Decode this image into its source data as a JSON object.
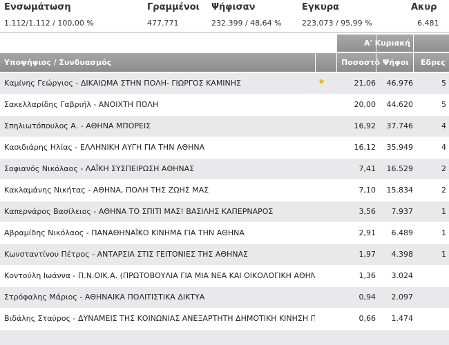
{
  "summary": {
    "columns": [
      {
        "label": "Ενσωμάτωση",
        "value": "1.112/1.112 / 100,00 %"
      },
      {
        "label": "Γραμμένοι",
        "value": "477.771"
      },
      {
        "label": "Ψήφισαν",
        "value": "232.399 / 48,64 %"
      },
      {
        "label": "Εγκυρα",
        "value": "223.073 / 95,99 %"
      },
      {
        "label": "Ακυρ",
        "value": "6.481"
      }
    ]
  },
  "table": {
    "round_label": "Α' Κυριακή",
    "headers": {
      "candidate": "Υποψήφιος / Συνδυασμός",
      "percent": "Ποσοστό",
      "votes": "Ψήφοι",
      "seats": "Εδρες"
    },
    "rows": [
      {
        "name": "Καμίνης Γεώργιος - ΔΙΚΑΙΩΜΑ ΣΤΗΝ ΠΟΛΗ- ΓΙΩΡΓΟΣ ΚΑΜΙΝΗΣ",
        "star": "★",
        "percent": "21,06",
        "votes": "46.976",
        "seats": "5"
      },
      {
        "name": "Σακελλαρίδης Γαβριήλ - ΑΝΟΙΧΤΗ ΠΟΛΗ",
        "star": "",
        "percent": "20,00",
        "votes": "44.620",
        "seats": "5"
      },
      {
        "name": "Σπηλιωτόπουλος Α. - ΑΘΗΝΑ ΜΠΟΡΕΙΣ",
        "star": "",
        "percent": "16,92",
        "votes": "37.746",
        "seats": "4"
      },
      {
        "name": "Κασιδιάρης Ηλίας - ΕΛΛΗΝΙΚΗ ΑΥΓΗ ΓΙΑ ΤΗΝ ΑΘΗΝΑ",
        "star": "",
        "percent": "16,12",
        "votes": "35.949",
        "seats": "4"
      },
      {
        "name": "Σοφιανός Νικόλαος - ΛΑΪΚΗ ΣΥΣΠΕΙΡΩΣΗ ΑΘΗΝΑΣ",
        "star": "",
        "percent": "7,41",
        "votes": "16.529",
        "seats": "2"
      },
      {
        "name": "Κακλαμάνης Νικήτας - ΑΘΗΝΑ, ΠΟΛΗ ΤΗΣ ΖΩΗΣ ΜΑΣ",
        "star": "",
        "percent": "7,10",
        "votes": "15.834",
        "seats": "2"
      },
      {
        "name": "Καπερνάρος Βασίλειος - ΑΘΗΝΑ ΤΟ ΣΠΙΤΙ ΜΑΣ! ΒΑΣΙΛΗΣ ΚΑΠΕΡΝΑΡΟΣ",
        "star": "",
        "percent": "3,56",
        "votes": "7.937",
        "seats": "1"
      },
      {
        "name": "Αβραμίδης Νικόλαος - ΠΑΝΑΘΗΝΑΪΚΟ ΚΙΝΗΜΑ ΓΙΑ ΤΗΝ ΑΘΗΝΑ",
        "star": "",
        "percent": "2,91",
        "votes": "6.489",
        "seats": "1"
      },
      {
        "name": "Κωνσταντίνου Πέτρος - ΑΝΤΑΡΣΙΑ ΣΤΙΣ ΓΕΙΤΟΝΙΕΣ ΤΗΣ ΑΘΗΝΑΣ",
        "star": "",
        "percent": "1,97",
        "votes": "4.398",
        "seats": "1"
      },
      {
        "name": "Κοντούλη Ιωάννα - Π.Ν.ΟΙΚ.Α. (ΠΡΩΤΟΒΟΥΛΙΑ ΓΙΑ ΜΙΑ ΝΕΑ ΚΑΙ ΟΙΚΟΛΟΓΙΚΗ ΑΘΗΝΑ)",
        "star": "",
        "percent": "1,36",
        "votes": "3.024",
        "seats": ""
      },
      {
        "name": "Στρόφαλης Μάριος - ΑΘΗΝΑΙΚΑ ΠΟΛΙΤΙΣΤΙΚΑ ΔΙΚΤΥΑ",
        "star": "",
        "percent": "0,94",
        "votes": "2.097",
        "seats": ""
      },
      {
        "name": "Βιδάλης Σταύρος - ΔΥΝΑΜΕΙΣ ΤΗΣ ΚΟΙΝΩΝΙΑΣ ΑΝΕΞΑΡΤΗΤΗ ΔΗΜΟΤΙΚΗ ΚΙΝΗΣΗ ΠΟΛΙΤΩΝ Α...",
        "star": "",
        "percent": "0,66",
        "votes": "1.474",
        "seats": ""
      }
    ]
  },
  "colors": {
    "star": "#e6b800",
    "header": "#999999",
    "row_alt": "#e9e9eb"
  }
}
